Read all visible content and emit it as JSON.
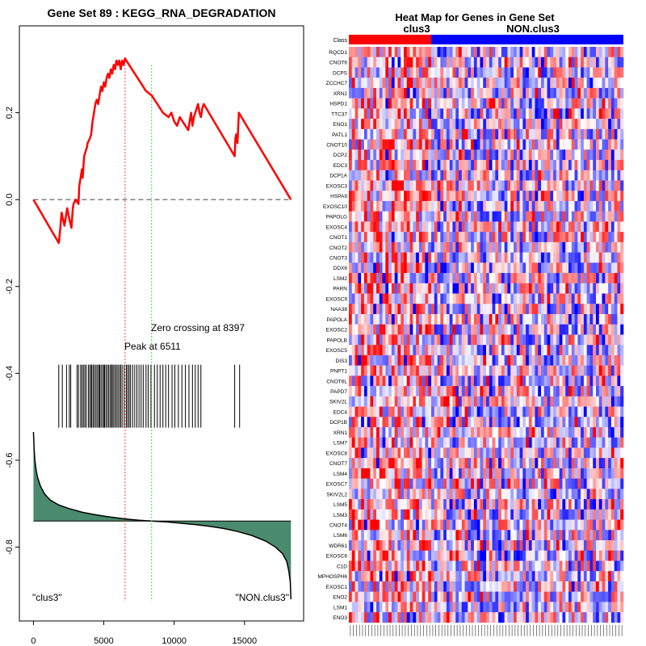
{
  "chart_data": [
    {
      "type": "line",
      "title": "Gene Set  89 : KEGG_RNA_DEGRADATION",
      "xlabel": "",
      "ylabel": "",
      "xlim": [
        -1000,
        19200
      ],
      "ylim": [
        -0.97,
        0.4
      ],
      "x_ticks": [
        0,
        5000,
        10000,
        15000
      ],
      "y_ticks": [
        0.2,
        0.0,
        -0.2,
        -0.4,
        -0.6,
        -0.8
      ],
      "y_tick_labels": [
        "0.2",
        "0.0",
        "-0.2",
        "-0.4",
        "-0.6",
        "-0.8"
      ],
      "running_es": {
        "name": "Enrichment score",
        "color": "#ff0000",
        "x": [
          0,
          1800,
          1900,
          2000,
          2200,
          2300,
          2400,
          2550,
          2700,
          2800,
          2850,
          3000,
          3200,
          3250,
          3350,
          3450,
          3500,
          3600,
          3700,
          3800,
          3850,
          4000,
          4100,
          4200,
          4300,
          4400,
          4500,
          4600,
          4700,
          4800,
          4900,
          5000,
          5100,
          5200,
          5300,
          5400,
          5500,
          5600,
          5700,
          5800,
          5900,
          6000,
          6100,
          6200,
          6300,
          6400,
          6511,
          6600,
          6700,
          6800,
          7000,
          7200,
          7400,
          7600,
          7800,
          8000,
          8200,
          8400,
          8600,
          8800,
          9000,
          9200,
          9400,
          9600,
          9800,
          10000,
          10200,
          10400,
          10600,
          10800,
          11000,
          11200,
          11300,
          11400,
          11500,
          11600,
          11700,
          11800,
          11900,
          12000,
          12100,
          14300,
          14350,
          14400,
          14500,
          14600,
          18300
        ],
        "y": [
          0.0,
          -0.1,
          -0.07,
          -0.03,
          -0.06,
          -0.04,
          -0.02,
          -0.045,
          -0.065,
          -0.02,
          -0.01,
          0.0,
          -0.01,
          0.03,
          0.05,
          0.07,
          0.05,
          0.1,
          0.11,
          0.12,
          0.13,
          0.14,
          0.15,
          0.18,
          0.2,
          0.22,
          0.23,
          0.22,
          0.24,
          0.26,
          0.25,
          0.27,
          0.26,
          0.28,
          0.29,
          0.28,
          0.3,
          0.29,
          0.31,
          0.3,
          0.32,
          0.31,
          0.32,
          0.3,
          0.32,
          0.31,
          0.325,
          0.32,
          0.315,
          0.31,
          0.3,
          0.29,
          0.28,
          0.27,
          0.26,
          0.25,
          0.245,
          0.24,
          0.23,
          0.22,
          0.21,
          0.2,
          0.195,
          0.19,
          0.2,
          0.18,
          0.17,
          0.19,
          0.18,
          0.17,
          0.16,
          0.2,
          0.17,
          0.19,
          0.2,
          0.21,
          0.22,
          0.2,
          0.19,
          0.21,
          0.22,
          0.1,
          0.14,
          0.15,
          0.13,
          0.2,
          0.0
        ]
      },
      "zero_line": 0.0,
      "peak_x": 6511,
      "zero_crossing_x": 8397,
      "annotations": {
        "zero_crossing": "Zero crossing at 8397",
        "peak": "Peak at 6511",
        "left_label": "\"clus3\"",
        "right_label": "\"NON.clus3\""
      },
      "hit_positions": [
        1800,
        2050,
        2350,
        2550,
        2650,
        3100,
        3200,
        3350,
        3450,
        3550,
        3650,
        3750,
        3900,
        4000,
        4100,
        4150,
        4250,
        4350,
        4450,
        4550,
        4650,
        4700,
        4800,
        4900,
        5000,
        5050,
        5150,
        5250,
        5350,
        5450,
        5550,
        5600,
        5700,
        5800,
        5900,
        6000,
        6100,
        6200,
        6300,
        6450,
        6600,
        6700,
        6800,
        6900,
        7050,
        7200,
        7350,
        7500,
        7650,
        7800,
        8000,
        8150,
        8350,
        8600,
        8800,
        9000,
        9200,
        9400,
        9600,
        9850,
        10050,
        10300,
        10550,
        10800,
        11050,
        11300,
        11500,
        11700,
        11900,
        14300,
        14650
      ],
      "hit_y_range": [
        -0.38,
        -0.525
      ],
      "ranked_metric": {
        "color": "#4a8a6e",
        "x": [
          0,
          50,
          100,
          200,
          300,
          500,
          800,
          1200,
          1800,
          2500,
          3500,
          4500,
          5500,
          6500,
          7500,
          8397,
          9500,
          10500,
          11500,
          12500,
          13500,
          14500,
          15500,
          16500,
          17200,
          17700,
          18000,
          18150,
          18250,
          18300
        ],
        "y": [
          -0.535,
          -0.575,
          -0.6,
          -0.625,
          -0.64,
          -0.66,
          -0.678,
          -0.692,
          -0.703,
          -0.711,
          -0.72,
          -0.726,
          -0.731,
          -0.735,
          -0.738,
          -0.74,
          -0.742,
          -0.745,
          -0.748,
          -0.752,
          -0.757,
          -0.764,
          -0.773,
          -0.786,
          -0.8,
          -0.815,
          -0.833,
          -0.855,
          -0.88,
          -0.92
        ],
        "baseline": -0.74
      }
    },
    {
      "type": "heatmap",
      "title": "Heat Map for Genes in Gene Set",
      "class_row_label": "Class",
      "class_groups": [
        {
          "name": "clus3",
          "color": "#ff0000",
          "fraction": 0.3
        },
        {
          "name": "NON.clus3",
          "color": "#0000ff",
          "fraction": 0.7
        }
      ],
      "genes": [
        "RQCD1",
        "CNOT6",
        "DCPS",
        "ZCCHC7",
        "XRN2",
        "HSPD1",
        "TTC37",
        "ENO1",
        "PATL1",
        "CNOT10",
        "DCP2",
        "EDC3",
        "DCP1A",
        "EXOSC3",
        "HSPA9",
        "EXOSC10",
        "PAPOLG",
        "EXOSC4",
        "CNOT1",
        "CNOT2",
        "CNOT3",
        "DDX6",
        "LSM2",
        "PARN",
        "EXOSC9",
        "NAA38",
        "PAPOLA",
        "EXOSC2",
        "PAPOLB",
        "EXOSC5",
        "DIS3",
        "PNPT1",
        "CNOT6L",
        "PAPD7",
        "SKIV2L",
        "EDC4",
        "DCP1B",
        "XRN1",
        "LSM7",
        "EXOSC8",
        "CNOT7",
        "LSM4",
        "EXOSC7",
        "SKIV2L2",
        "LSM5",
        "LSM3",
        "CNOT4",
        "LSM6",
        "WDR61",
        "EXOSC6",
        "C1D",
        "MPHOSPH6",
        "EXOSC1",
        "ENO2",
        "LSM1",
        "ENO3"
      ],
      "n_samples": 90,
      "color_scale": [
        "#0000ff",
        "#ffffff",
        "#ff0000"
      ]
    }
  ]
}
